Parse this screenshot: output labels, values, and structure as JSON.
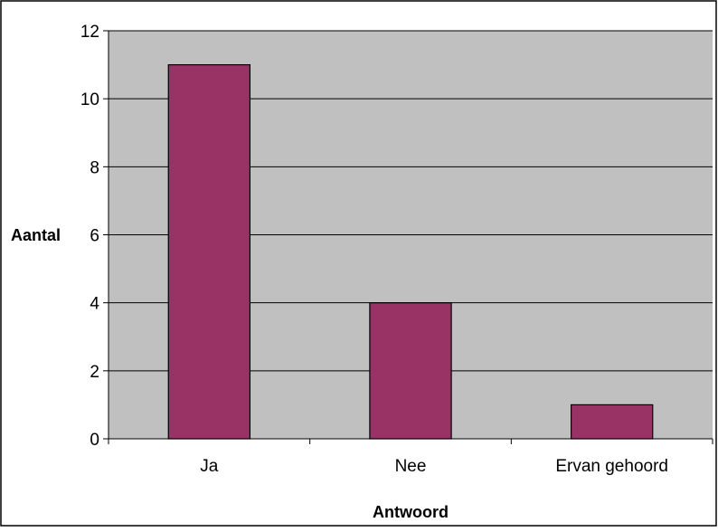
{
  "chart_data": {
    "type": "bar",
    "title": "",
    "xlabel": "Antwoord",
    "ylabel": "Aantal",
    "categories": [
      "Ja",
      "Nee",
      "Ervan gehoord"
    ],
    "values": [
      11,
      4,
      1
    ],
    "ylim": [
      0,
      12
    ],
    "yticks": [
      0,
      2,
      4,
      6,
      8,
      10,
      12
    ],
    "ytick_labels": [
      "0",
      "2",
      "4",
      "6",
      "8",
      "10",
      "12"
    ],
    "grid": true,
    "legend": "none",
    "colors": {
      "bar_fill": "#993366",
      "bar_stroke": "#000000",
      "plot_background": "#C0C0C0",
      "gridline": "#000000",
      "axis": "#000000",
      "chart_border": "#000000"
    }
  }
}
